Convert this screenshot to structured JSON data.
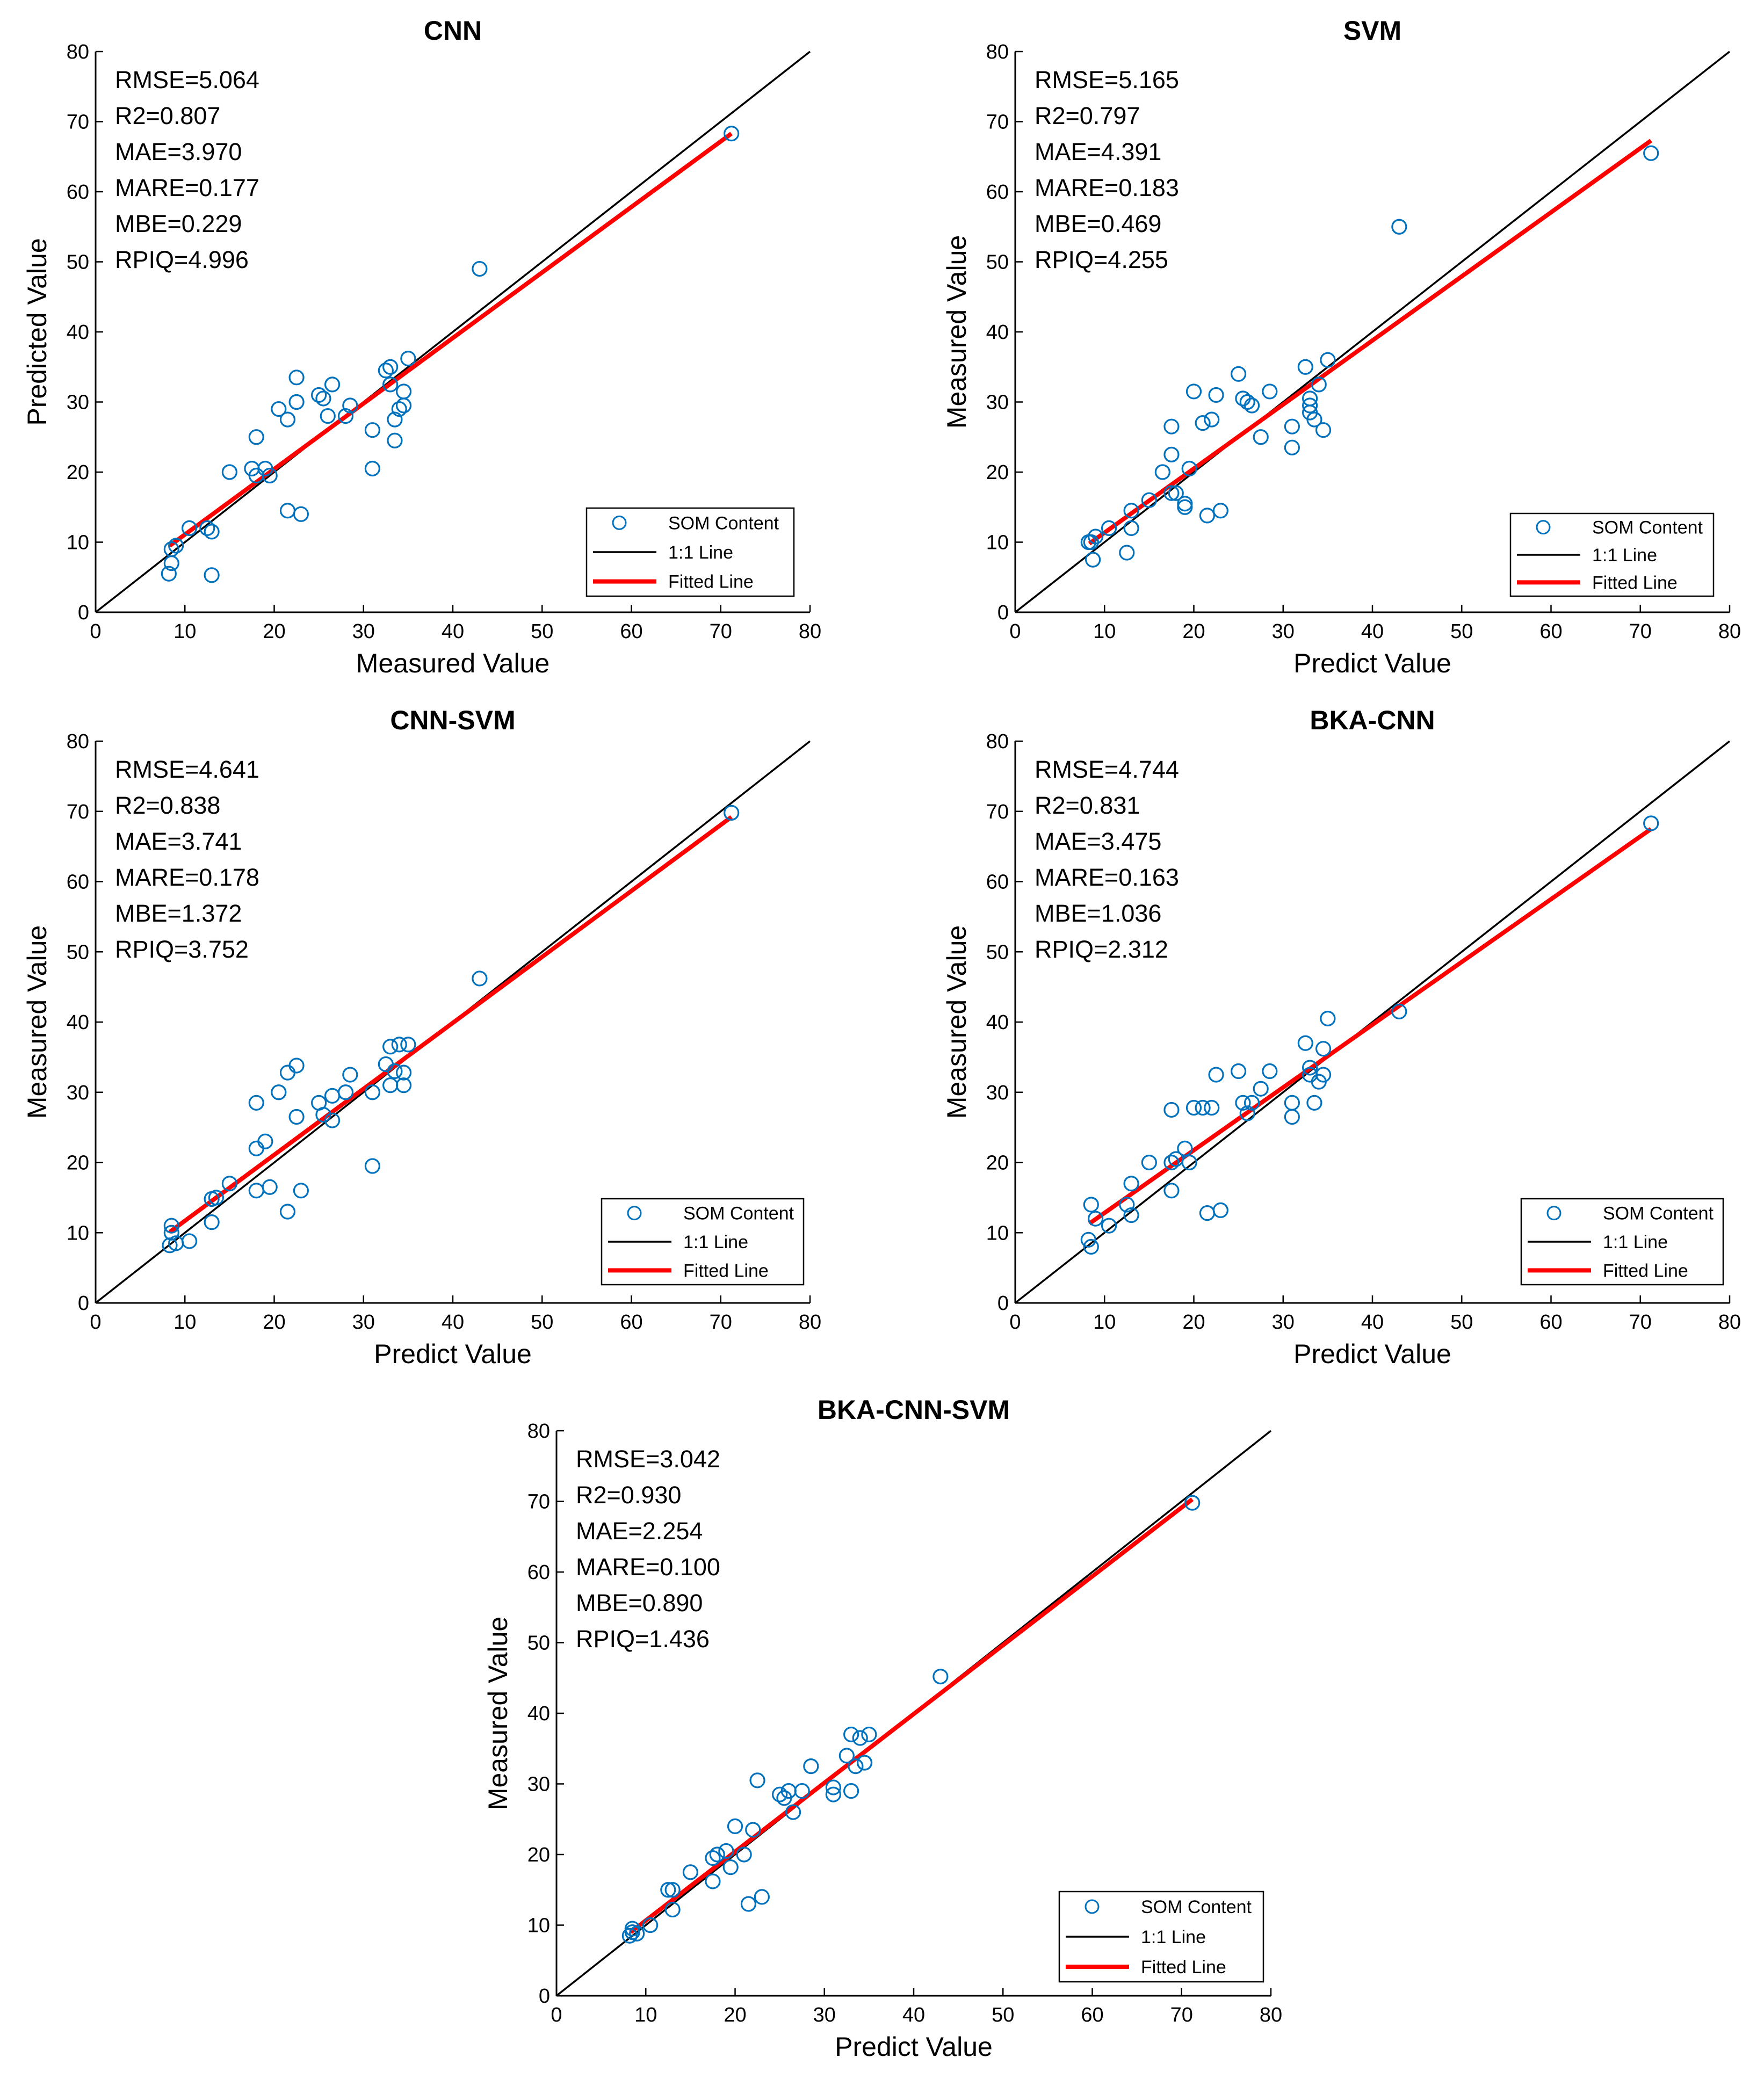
{
  "colors": {
    "point": "#0072BD",
    "fit": "#FF0000",
    "identity": "#000000",
    "axis": "#000000",
    "background": "#FFFFFF"
  },
  "chart_data": [
    {
      "type": "scatter",
      "title": "CNN",
      "xlabel": "Measured Value",
      "ylabel": "Predicted Value",
      "xlim": [
        0,
        80
      ],
      "ylim": [
        0,
        80
      ],
      "xticks": [
        "0",
        "10",
        "20",
        "30",
        "40",
        "50",
        "60",
        "70",
        "80"
      ],
      "yticks": [
        "0",
        "10",
        "20",
        "30",
        "40",
        "50",
        "60",
        "70",
        "80"
      ],
      "metrics": [
        "RMSE=5.064",
        "R2=0.807",
        "MAE=3.970",
        "MARE=0.177",
        "MBE=0.229",
        "RPIQ=4.996"
      ],
      "legend": {
        "placement": "bottom-right",
        "entries": [
          "SOM Content",
          "1:1 Line",
          "Fitted Line"
        ]
      },
      "fit_line": {
        "x": [
          8.3,
          71.2
        ],
        "y": [
          9.5,
          68.3
        ]
      },
      "points": {
        "x": [
          71.2,
          43.0,
          35.0,
          34.5,
          34.5,
          33.0,
          32.5,
          33.0,
          34.0,
          33.5,
          33.5,
          31.0,
          31.0,
          28.5,
          28.0,
          26.5,
          26.0,
          25.5,
          25.0,
          22.5,
          22.5,
          21.5,
          20.5,
          18.0,
          17.5,
          18.0,
          19.0,
          19.5,
          15.0,
          21.5,
          23.0,
          12.5,
          13.0,
          10.5,
          9.0,
          8.5,
          8.5,
          8.2,
          13.0
        ],
        "y": [
          68.3,
          49.0,
          36.2,
          31.5,
          29.5,
          35.0,
          34.5,
          32.5,
          29.0,
          27.5,
          24.5,
          26.0,
          20.5,
          29.5,
          28.0,
          32.5,
          28.0,
          30.5,
          31.0,
          33.5,
          30.0,
          27.5,
          29.0,
          25.0,
          20.5,
          19.5,
          20.5,
          19.5,
          20.0,
          14.5,
          14.0,
          12.0,
          11.5,
          12.0,
          9.5,
          9.0,
          7.0,
          5.5,
          5.3
        ]
      }
    },
    {
      "type": "scatter",
      "title": "SVM",
      "xlabel": "Predict Value",
      "ylabel": "Measured Value",
      "xlim": [
        0,
        80
      ],
      "ylim": [
        0,
        80
      ],
      "xticks": [
        "0",
        "10",
        "20",
        "30",
        "40",
        "50",
        "60",
        "70",
        "80"
      ],
      "yticks": [
        "0",
        "10",
        "20",
        "30",
        "40",
        "50",
        "60",
        "70",
        "80"
      ],
      "metrics": [
        "RMSE=5.165",
        "R2=0.797",
        "MAE=4.391",
        "MARE=0.183",
        "MBE=0.469",
        "RPIQ=4.255"
      ],
      "legend": {
        "placement": "bottom-right",
        "entries": [
          "SOM Content",
          "1:1 Line",
          "Fitted Line"
        ]
      },
      "fit_line": {
        "x": [
          8.3,
          71.2
        ],
        "y": [
          9.8,
          67.3
        ]
      },
      "points": {
        "x": [
          71.2,
          43.0,
          35.0,
          34.5,
          34.0,
          33.5,
          33.0,
          33.0,
          33.0,
          32.5,
          31.0,
          31.0,
          28.5,
          27.5,
          26.5,
          26.0,
          25.5,
          25.0,
          22.5,
          22.0,
          21.0,
          20.0,
          19.5,
          19.0,
          18.0,
          17.5,
          17.5,
          17.5,
          16.5,
          23.0,
          21.5,
          19.0,
          15.0,
          13.0,
          13.0,
          12.5,
          10.5,
          9.0,
          8.5,
          8.2,
          8.7
        ],
        "y": [
          65.5,
          55.0,
          36.0,
          26.0,
          32.5,
          27.5,
          28.5,
          29.5,
          30.5,
          35.0,
          26.5,
          23.5,
          31.5,
          25.0,
          29.5,
          30.0,
          30.5,
          34.0,
          31.0,
          27.5,
          27.0,
          31.5,
          20.5,
          15.0,
          17.0,
          17.0,
          22.5,
          26.5,
          20.0,
          14.5,
          13.8,
          15.5,
          16.0,
          14.5,
          12.0,
          8.5,
          12.0,
          10.8,
          10.0,
          10.0,
          7.5
        ]
      }
    },
    {
      "type": "scatter",
      "title": "CNN-SVM",
      "xlabel": "Predict Value",
      "ylabel": "Measured Value",
      "xlim": [
        0,
        80
      ],
      "ylim": [
        0,
        80
      ],
      "xticks": [
        "0",
        "10",
        "20",
        "30",
        "40",
        "50",
        "60",
        "70",
        "80"
      ],
      "yticks": [
        "0",
        "10",
        "20",
        "30",
        "40",
        "50",
        "60",
        "70",
        "80"
      ],
      "metrics": [
        "RMSE=4.641",
        "R2=0.838",
        "MAE=3.741",
        "MARE=0.178",
        "MBE=1.372",
        "RPIQ=3.752"
      ],
      "legend": {
        "placement": "bottom-right",
        "entries": [
          "SOM Content",
          "1:1 Line",
          "Fitted Line"
        ]
      },
      "fit_line": {
        "x": [
          8.3,
          71.2
        ],
        "y": [
          10.1,
          69.2
        ]
      },
      "points": {
        "x": [
          71.2,
          43.0,
          35.0,
          34.5,
          34.5,
          34.0,
          33.5,
          33.0,
          33.0,
          32.5,
          31.0,
          31.0,
          28.5,
          28.0,
          26.5,
          26.5,
          25.5,
          25.0,
          22.5,
          22.5,
          21.5,
          20.5,
          18.0,
          18.0,
          18.0,
          19.0,
          19.5,
          23.0,
          21.5,
          15.0,
          13.5,
          13.0,
          13.0,
          10.5,
          9.0,
          8.5,
          8.5,
          8.3
        ],
        "y": [
          69.8,
          46.2,
          36.8,
          31.0,
          32.8,
          36.8,
          33.0,
          31.0,
          36.5,
          34.0,
          30.0,
          19.5,
          32.5,
          30.0,
          26.0,
          29.5,
          26.8,
          28.5,
          33.8,
          26.5,
          32.8,
          30.0,
          28.5,
          22.0,
          16.0,
          23.0,
          16.5,
          16.0,
          13.0,
          17.0,
          15.0,
          14.8,
          11.5,
          8.8,
          8.5,
          11.0,
          10.0,
          8.2
        ]
      }
    },
    {
      "type": "scatter",
      "title": "BKA-CNN",
      "xlabel": "Predict Value",
      "ylabel": "Measured Value",
      "xlim": [
        0,
        80
      ],
      "ylim": [
        0,
        80
      ],
      "xticks": [
        "0",
        "10",
        "20",
        "30",
        "40",
        "50",
        "60",
        "70",
        "80"
      ],
      "yticks": [
        "0",
        "10",
        "20",
        "30",
        "40",
        "50",
        "60",
        "70",
        "80"
      ],
      "metrics": [
        "RMSE=4.744",
        "R2=0.831",
        "MAE=3.475",
        "MARE=0.163",
        "MBE=1.036",
        "RPIQ=2.312"
      ],
      "legend": {
        "placement": "bottom-right",
        "entries": [
          "SOM Content",
          "1:1 Line",
          "Fitted Line"
        ]
      },
      "fit_line": {
        "x": [
          8.3,
          71.2
        ],
        "y": [
          11.3,
          67.5
        ]
      },
      "points": {
        "x": [
          71.2,
          43.0,
          35.0,
          34.5,
          34.5,
          34.0,
          33.5,
          33.0,
          33.0,
          32.5,
          31.0,
          31.0,
          28.5,
          27.5,
          26.5,
          26.0,
          25.5,
          25.0,
          22.5,
          22.0,
          21.0,
          20.0,
          19.5,
          19.0,
          18.0,
          17.5,
          17.5,
          17.5,
          15.0,
          23.0,
          21.5,
          13.0,
          13.0,
          12.5,
          10.5,
          9.0,
          8.5,
          8.5,
          8.2
        ],
        "y": [
          68.3,
          41.5,
          40.5,
          36.2,
          32.5,
          31.5,
          28.5,
          32.5,
          33.5,
          37.0,
          26.5,
          28.5,
          33.0,
          30.5,
          28.5,
          27.0,
          28.5,
          33.0,
          32.5,
          27.8,
          27.8,
          27.8,
          20.0,
          22.0,
          20.5,
          20.0,
          27.5,
          16.0,
          20.0,
          13.2,
          12.8,
          17.0,
          12.5,
          14.0,
          11.0,
          12.0,
          14.0,
          8.0,
          9.0
        ]
      }
    },
    {
      "type": "scatter",
      "title": "BKA-CNN-SVM",
      "xlabel": "Predict Value",
      "ylabel": "Measured Value",
      "xlim": [
        0,
        80
      ],
      "ylim": [
        0,
        80
      ],
      "xticks": [
        "0",
        "10",
        "20",
        "30",
        "40",
        "50",
        "60",
        "70",
        "80"
      ],
      "yticks": [
        "0",
        "10",
        "20",
        "30",
        "40",
        "50",
        "60",
        "70",
        "80"
      ],
      "metrics": [
        "RMSE=3.042",
        "R2=0.930",
        "MAE=2.254",
        "MARE=0.100",
        "MBE=0.890",
        "RPIQ=1.436"
      ],
      "legend": {
        "placement": "bottom-right",
        "entries": [
          "SOM Content",
          "1:1 Line",
          "Fitted Line"
        ]
      },
      "fit_line": {
        "x": [
          8.3,
          71.2
        ],
        "y": [
          9.0,
          70.3
        ]
      },
      "points": {
        "x": [
          71.2,
          43.0,
          35.0,
          34.5,
          34.5,
          34.0,
          33.5,
          33.0,
          33.0,
          32.5,
          31.0,
          31.0,
          28.5,
          27.5,
          26.5,
          26.0,
          25.5,
          25.0,
          22.5,
          22.0,
          21.0,
          20.0,
          19.5,
          19.0,
          18.0,
          17.5,
          17.5,
          23.0,
          21.5,
          15.0,
          13.0,
          13.0,
          12.5,
          10.5,
          9.0,
          8.5,
          8.5,
          8.2
        ],
        "y": [
          69.8,
          45.2,
          37.0,
          33.0,
          33.0,
          36.5,
          32.5,
          29.0,
          37.0,
          34.0,
          28.5,
          29.5,
          32.5,
          29.0,
          26.0,
          29.0,
          28.0,
          28.5,
          30.5,
          23.5,
          20.0,
          24.0,
          18.2,
          20.5,
          20.0,
          16.2,
          19.5,
          14.0,
          13.0,
          17.5,
          15.0,
          12.2,
          15.0,
          10.0,
          8.8,
          9.0,
          9.5,
          8.5
        ]
      }
    }
  ]
}
